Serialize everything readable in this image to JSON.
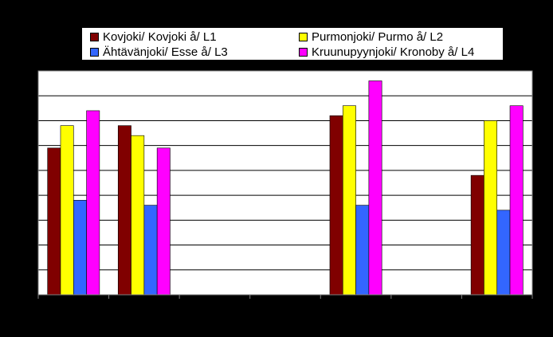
{
  "chart_data": {
    "type": "bar",
    "categories": [
      "",
      "",
      "",
      "",
      "",
      "",
      ""
    ],
    "ylim": [
      0,
      9
    ],
    "grid": true,
    "legend_position": "top",
    "series": [
      {
        "name": "Kovjoki/ Kovjoki å/ L1",
        "color": "#800000",
        "values": [
          5.9,
          6.8,
          null,
          null,
          7.2,
          null,
          4.8
        ]
      },
      {
        "name": "Purmonjoki/ Purmo å/ L2",
        "color": "#ffff00",
        "values": [
          6.8,
          6.4,
          null,
          null,
          7.6,
          null,
          7.0
        ]
      },
      {
        "name": "Ähtävänjoki/ Esse å/ L3",
        "color": "#3366ff",
        "values": [
          3.8,
          3.6,
          null,
          null,
          3.6,
          null,
          3.4
        ]
      },
      {
        "name": "Kruunupyynjoki/ Kronoby å/ L4",
        "color": "#ff00ff",
        "values": [
          7.4,
          5.9,
          null,
          null,
          8.6,
          null,
          7.6
        ]
      }
    ]
  }
}
